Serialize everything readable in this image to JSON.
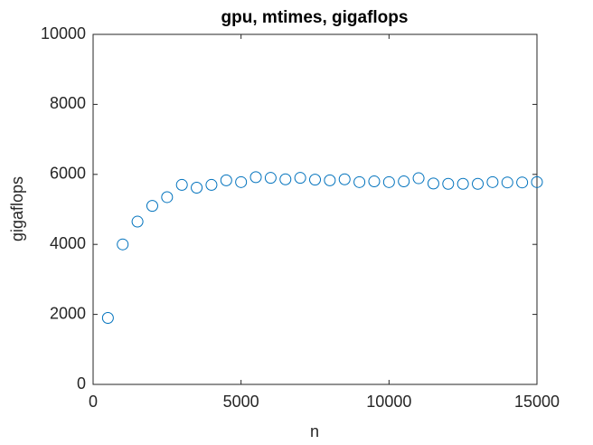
{
  "chart_data": {
    "type": "scatter",
    "title": "gpu, mtimes, gigaflops",
    "x_label": "n",
    "y_label": "gigaflops",
    "x": [
      500,
      1000,
      1500,
      2000,
      2500,
      3000,
      3500,
      4000,
      4500,
      5000,
      5500,
      6000,
      6500,
      7000,
      7500,
      8000,
      8500,
      9000,
      9500,
      10000,
      10500,
      11000,
      11500,
      12000,
      12500,
      13000,
      13500,
      14000,
      14500,
      15000
    ],
    "series": [
      {
        "color": "#0072bd",
        "values": [
          1900,
          4000,
          4650,
          5100,
          5350,
          5700,
          5620,
          5700,
          5830,
          5780,
          5920,
          5900,
          5860,
          5900,
          5850,
          5830,
          5860,
          5780,
          5800,
          5780,
          5800,
          5890,
          5740,
          5730,
          5730,
          5730,
          5780,
          5770,
          5770,
          5780
        ]
      }
    ],
    "xlim": [
      0,
      15000
    ],
    "xticks": [
      0,
      5000,
      10000,
      15000
    ],
    "ylim": [
      0,
      10000
    ],
    "yticks": [
      0,
      2000,
      4000,
      6000,
      8000,
      10000
    ]
  }
}
